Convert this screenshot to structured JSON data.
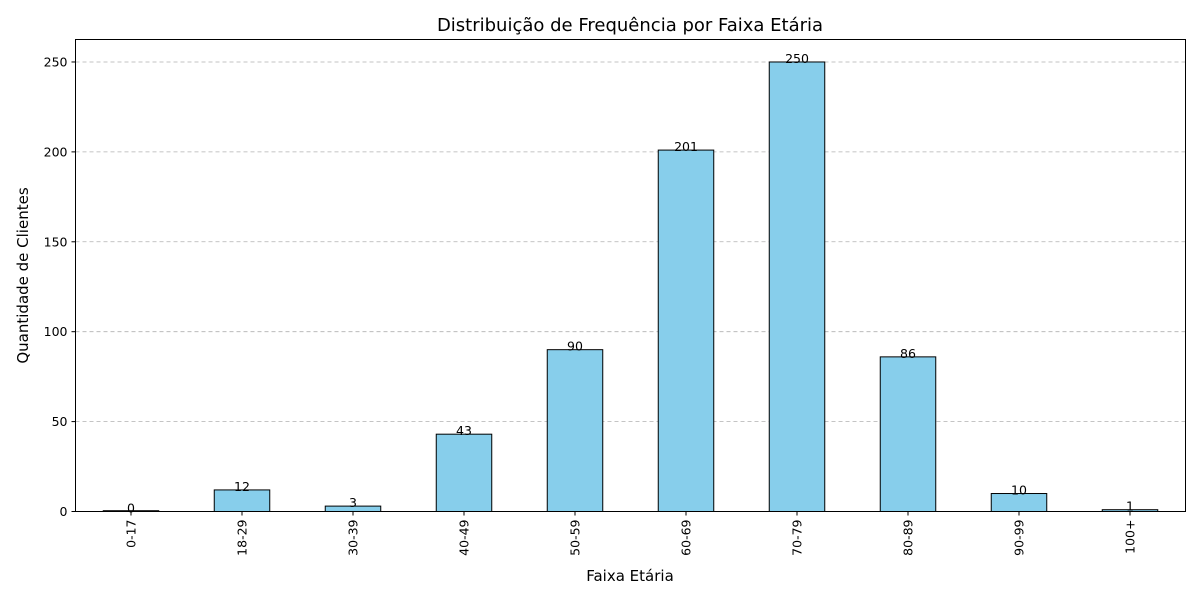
{
  "chart_data": {
    "type": "bar",
    "title": "Distribuição de Frequência por Faixa Etária",
    "xlabel": "Faixa Etária",
    "ylabel": "Quantidade de Clientes",
    "categories": [
      "0-17",
      "18-29",
      "30-39",
      "40-49",
      "50-59",
      "60-69",
      "70-79",
      "80-89",
      "90-99",
      "100+"
    ],
    "values": [
      0,
      12,
      3,
      43,
      90,
      201,
      250,
      86,
      10,
      1
    ],
    "data_labels": [
      "0",
      "12",
      "3",
      "43",
      "90",
      "201",
      "250",
      "86",
      "10",
      "1"
    ],
    "yticks": [
      0,
      50,
      100,
      150,
      200,
      250
    ],
    "ytick_labels": [
      "0",
      "50",
      "100",
      "150",
      "200",
      "250"
    ],
    "ylim": [
      0,
      262.5
    ],
    "grid": "y-dashed",
    "bar_color": "#87CEEB",
    "edge_color": "#000000"
  }
}
